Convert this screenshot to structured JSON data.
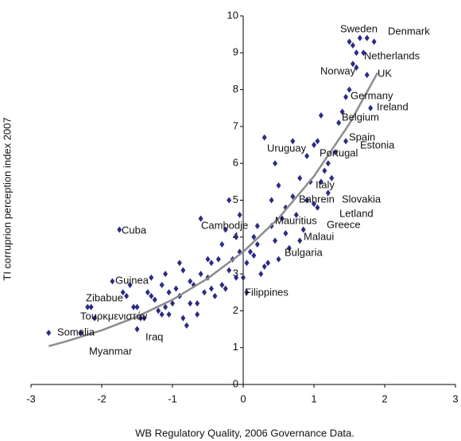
{
  "chart_data": {
    "type": "scatter",
    "xlabel": "WB Regulatory Quality, 2006 Governance Data.",
    "ylabel": "TI corruprion perception index 2007",
    "xlim": [
      -3,
      3
    ],
    "xticks": [
      -3,
      -2,
      -1,
      0,
      1,
      2,
      3
    ],
    "ylim": [
      0,
      10
    ],
    "yticks": [
      0,
      1,
      2,
      3,
      4,
      5,
      6,
      7,
      8,
      9,
      10
    ],
    "color": "#2b2b86",
    "x": [
      -2.75,
      -2.3,
      -2.2,
      -2.1,
      -1.85,
      -1.75,
      -1.7,
      -1.65,
      -1.55,
      -1.5,
      -1.45,
      -1.4,
      -1.5,
      -1.35,
      -1.3,
      -1.25,
      -1.2,
      -1.15,
      -1.1,
      -1.05,
      -1.0,
      -0.95,
      -0.9,
      -0.85,
      -0.8,
      -0.75,
      -0.7,
      -0.65,
      -0.6,
      -0.55,
      -0.5,
      -0.45,
      -0.4,
      -0.35,
      -0.3,
      -0.25,
      -0.2,
      -0.15,
      -0.1,
      -0.05,
      0,
      0.05,
      -0.6,
      -0.25,
      -0.2,
      -0.1,
      -0.05,
      0.1,
      0.15,
      0.2,
      0.25,
      0.3,
      0.3,
      0.35,
      0.4,
      0.4,
      0.45,
      0.5,
      0.5,
      0.55,
      0.6,
      0.65,
      0.7,
      0.7,
      0.75,
      0.8,
      0.85,
      0.9,
      0.9,
      0.95,
      1.0,
      1.0,
      1.05,
      1.05,
      1.1,
      1.1,
      1.15,
      1.2,
      1.25,
      1.3,
      1.35,
      1.4,
      1.45,
      1.45,
      1.5,
      1.55,
      1.55,
      1.6,
      1.65,
      1.7,
      1.75,
      1.75,
      1.8,
      1.85,
      1.5,
      1.6,
      -2.15,
      -1.05,
      -0.75,
      -0.9,
      -1.1,
      -1.3,
      -0.5,
      -0.3,
      -0.85,
      0.2,
      0.05,
      0.6,
      0.8,
      1.2,
      -1.6,
      -0.45,
      -0.65,
      -1.15,
      0.15,
      0.45
    ],
    "values": [
      1.4,
      1.4,
      2.1,
      1.8,
      2.8,
      4.2,
      2.5,
      2.4,
      2.1,
      2.1,
      1.8,
      1.8,
      1.5,
      2.5,
      2.4,
      2.3,
      2.0,
      1.9,
      2.1,
      2.5,
      2.2,
      2.6,
      2.4,
      1.8,
      1.6,
      2.8,
      2.7,
      2.2,
      3.0,
      2.5,
      2.9,
      3.3,
      2.4,
      3.4,
      2.7,
      2.6,
      3.1,
      3.4,
      2.9,
      3.6,
      2.9,
      3.3,
      4.5,
      4.2,
      5.0,
      4.0,
      4.6,
      3.6,
      4.0,
      3.8,
      3.0,
      3.2,
      6.7,
      3.3,
      4.3,
      5.0,
      6.0,
      5.4,
      3.4,
      4.5,
      4.1,
      3.7,
      5.1,
      6.6,
      4.6,
      5.6,
      4.2,
      5.0,
      6.2,
      5.5,
      6.5,
      4.9,
      6.6,
      4.8,
      5.5,
      7.3,
      5.8,
      6.0,
      5.6,
      6.3,
      7.1,
      7.4,
      6.6,
      7.8,
      8.0,
      8.7,
      9.2,
      8.6,
      9.4,
      9.0,
      8.4,
      9.4,
      7.5,
      9.3,
      9.3,
      9.0,
      2.1,
      1.9,
      2.2,
      3.3,
      3.0,
      2.9,
      3.4,
      3.8,
      3.1,
      4.3,
      2.5,
      4.8,
      3.9,
      5.2,
      2.7,
      2.6,
      1.9,
      2.7,
      3.5,
      3.9
    ],
    "trendline": {
      "color": "#8c8c8c",
      "x": [
        -2.75,
        -2.5,
        -2,
        -1.5,
        -1,
        -0.5,
        0,
        0.5,
        1,
        1.5,
        1.9
      ],
      "values": [
        1.04,
        1.17,
        1.47,
        1.84,
        2.3,
        2.88,
        3.6,
        4.51,
        5.65,
        7.07,
        8.46
      ]
    },
    "annotations": [
      "Sweden",
      "Denmark",
      "Netherlands",
      "Norway",
      "UK",
      "Germany",
      "Ireland",
      "Belgium",
      "Spain",
      "Estonia",
      "Uruguay",
      "Portugal",
      "Italy",
      "Bahrein",
      "Slovakia",
      "Letland",
      "Mauritius",
      "Greece",
      "Malaui",
      "Bulgaria",
      "Cambodje",
      "Cuba",
      "Guinea",
      "Zibabue",
      "Τουρκμενιστάν",
      "Somalia",
      "Iraq",
      "Myanmar",
      "Filippines"
    ]
  }
}
